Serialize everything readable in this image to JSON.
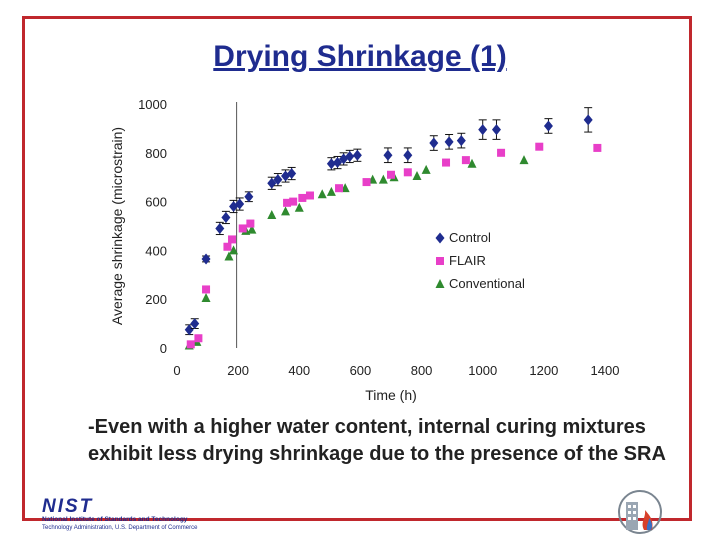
{
  "slide": {
    "title": "Drying Shrinkage (1)",
    "caption": "-Even with a higher water content, internal curing mixtures exhibit less drying shrinkage due to the presence of the SRA",
    "logo_word": "NIST",
    "logo_line1": "National Institute of Standards and Technology",
    "logo_line2": "Technology Administration, U.S. Department of Commerce"
  },
  "colors": {
    "frame": "#c0282d",
    "title": "#1f2c8f",
    "control": "#1f2c8f",
    "flair": "#e83fc8",
    "conventional": "#2f8a2f"
  },
  "chart_data": {
    "type": "scatter",
    "title": "",
    "xlabel": "Time (h)",
    "ylabel": "Average shrinkage (microstrain)",
    "xlim": [
      0,
      1400
    ],
    "ylim": [
      0,
      1000
    ],
    "xticks": [
      0,
      200,
      400,
      600,
      800,
      1000,
      1200,
      1400
    ],
    "yticks": [
      0,
      200,
      400,
      600,
      800,
      1000
    ],
    "ytick_labels": [
      "0",
      "200",
      "400",
      "600",
      "800",
      "1000"
    ],
    "vline_x": 195,
    "legend_position": "center-right",
    "series": [
      {
        "name": "Control",
        "marker": "diamond",
        "error_bars": true,
        "points": [
          {
            "x": 40,
            "y": 75,
            "err": 20
          },
          {
            "x": 58,
            "y": 100,
            "err": 20
          },
          {
            "x": 95,
            "y": 365,
            "err": 12
          },
          {
            "x": 140,
            "y": 490,
            "err": 25
          },
          {
            "x": 160,
            "y": 535,
            "err": 25
          },
          {
            "x": 185,
            "y": 580,
            "err": 25
          },
          {
            "x": 205,
            "y": 590,
            "err": 25
          },
          {
            "x": 235,
            "y": 620,
            "err": 20
          },
          {
            "x": 310,
            "y": 675,
            "err": 25
          },
          {
            "x": 330,
            "y": 690,
            "err": 25
          },
          {
            "x": 355,
            "y": 705,
            "err": 25
          },
          {
            "x": 375,
            "y": 715,
            "err": 25
          },
          {
            "x": 505,
            "y": 755,
            "err": 25
          },
          {
            "x": 525,
            "y": 760,
            "err": 25
          },
          {
            "x": 545,
            "y": 775,
            "err": 25
          },
          {
            "x": 565,
            "y": 785,
            "err": 25
          },
          {
            "x": 590,
            "y": 790,
            "err": 25
          },
          {
            "x": 690,
            "y": 790,
            "err": 30
          },
          {
            "x": 755,
            "y": 790,
            "err": 30
          },
          {
            "x": 840,
            "y": 840,
            "err": 30
          },
          {
            "x": 890,
            "y": 845,
            "err": 30
          },
          {
            "x": 930,
            "y": 850,
            "err": 30
          },
          {
            "x": 1000,
            "y": 895,
            "err": 40
          },
          {
            "x": 1045,
            "y": 895,
            "err": 40
          },
          {
            "x": 1215,
            "y": 910,
            "err": 30
          },
          {
            "x": 1345,
            "y": 935,
            "err": 50
          }
        ]
      },
      {
        "name": "FLAIR",
        "marker": "square",
        "error_bars": false,
        "points": [
          {
            "x": 45,
            "y": 15
          },
          {
            "x": 70,
            "y": 40
          },
          {
            "x": 95,
            "y": 240
          },
          {
            "x": 165,
            "y": 415
          },
          {
            "x": 180,
            "y": 445
          },
          {
            "x": 215,
            "y": 490
          },
          {
            "x": 240,
            "y": 510
          },
          {
            "x": 360,
            "y": 595
          },
          {
            "x": 380,
            "y": 600
          },
          {
            "x": 410,
            "y": 615
          },
          {
            "x": 435,
            "y": 625
          },
          {
            "x": 530,
            "y": 655
          },
          {
            "x": 620,
            "y": 680
          },
          {
            "x": 700,
            "y": 710
          },
          {
            "x": 755,
            "y": 720
          },
          {
            "x": 880,
            "y": 760
          },
          {
            "x": 945,
            "y": 770
          },
          {
            "x": 1060,
            "y": 800
          },
          {
            "x": 1185,
            "y": 825
          },
          {
            "x": 1375,
            "y": 820
          }
        ]
      },
      {
        "name": "Conventional",
        "marker": "triangle",
        "error_bars": false,
        "points": [
          {
            "x": 40,
            "y": 10
          },
          {
            "x": 65,
            "y": 25
          },
          {
            "x": 95,
            "y": 205
          },
          {
            "x": 170,
            "y": 375
          },
          {
            "x": 185,
            "y": 400
          },
          {
            "x": 225,
            "y": 480
          },
          {
            "x": 245,
            "y": 485
          },
          {
            "x": 310,
            "y": 545
          },
          {
            "x": 355,
            "y": 560
          },
          {
            "x": 400,
            "y": 575
          },
          {
            "x": 475,
            "y": 630
          },
          {
            "x": 505,
            "y": 640
          },
          {
            "x": 550,
            "y": 655
          },
          {
            "x": 640,
            "y": 690
          },
          {
            "x": 675,
            "y": 690
          },
          {
            "x": 710,
            "y": 700
          },
          {
            "x": 785,
            "y": 705
          },
          {
            "x": 815,
            "y": 730
          },
          {
            "x": 965,
            "y": 755
          },
          {
            "x": 1135,
            "y": 770
          }
        ]
      }
    ]
  }
}
